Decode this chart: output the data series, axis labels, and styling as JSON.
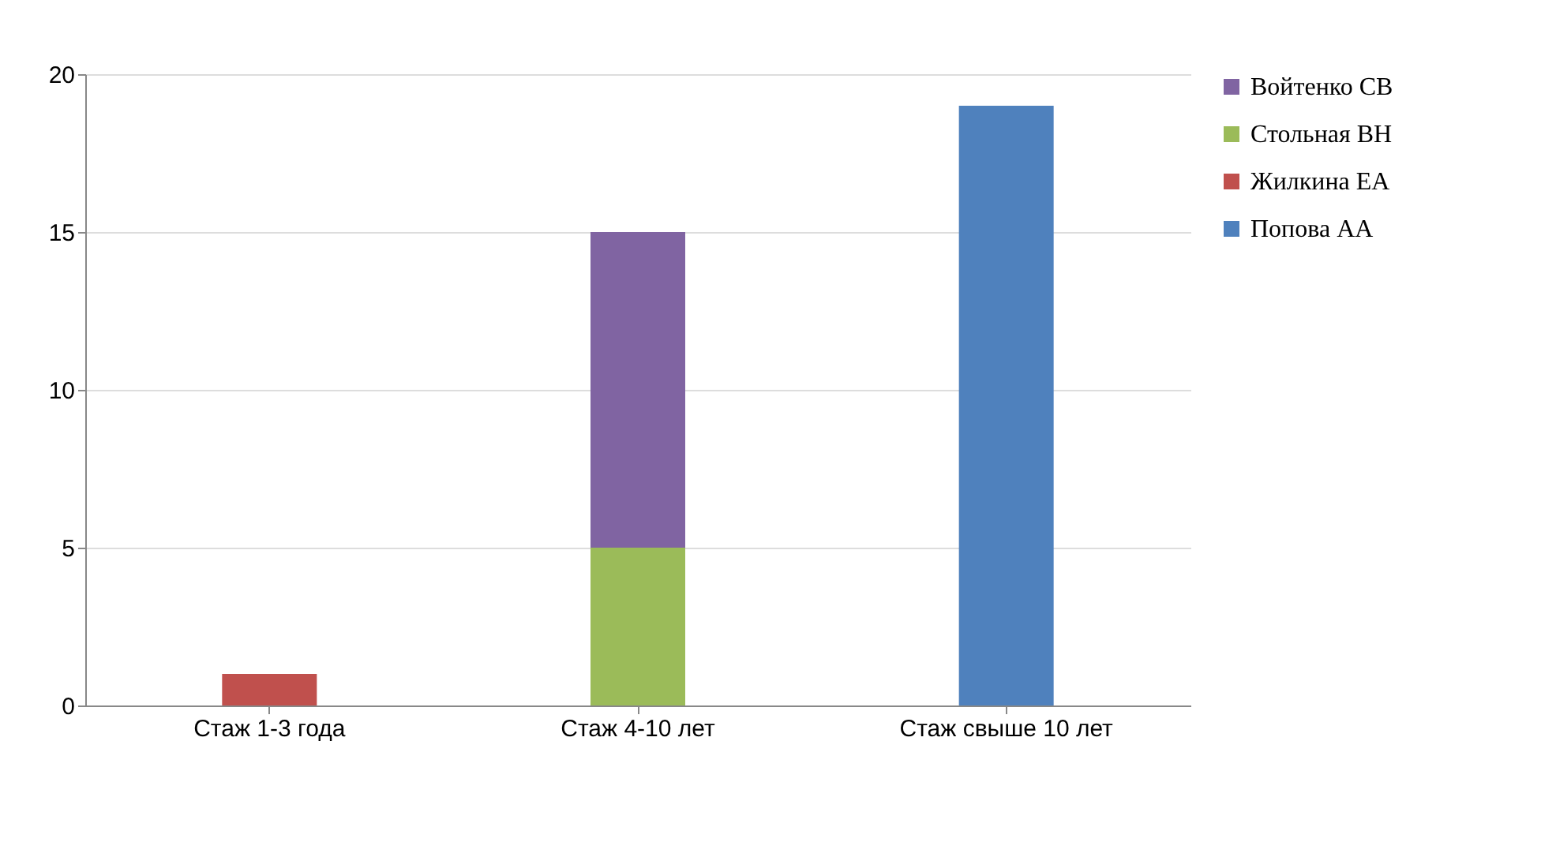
{
  "chart_data": {
    "type": "bar",
    "stacked": true,
    "categories": [
      "Стаж 1-3 года",
      "Стаж 4-10 лет",
      "Стаж свыше 10 лет"
    ],
    "series": [
      {
        "name": "Попова АА",
        "color": "#4f81bd",
        "values": [
          null,
          null,
          19
        ]
      },
      {
        "name": "Жилкина ЕА",
        "color": "#c0504d",
        "values": [
          1,
          null,
          null
        ]
      },
      {
        "name": "Стольная ВН",
        "color": "#9bbb59",
        "values": [
          null,
          5,
          null
        ]
      },
      {
        "name": "Войтенко СВ",
        "color": "#8064a2",
        "values": [
          null,
          10,
          null
        ]
      }
    ],
    "ylim": [
      0,
      20
    ],
    "yticks": [
      0,
      5,
      10,
      15,
      20
    ],
    "grid": "y",
    "legend": "right"
  }
}
